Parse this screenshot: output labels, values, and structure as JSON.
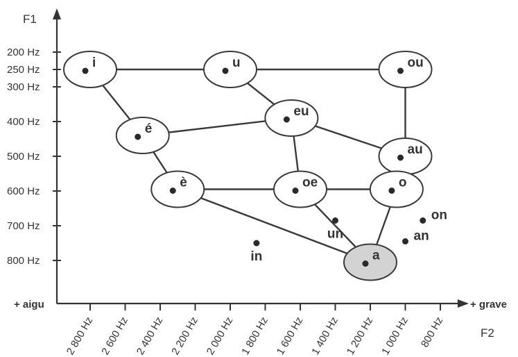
{
  "axes": {
    "y_title": "F1",
    "x_title": "F2",
    "left_end": "+ aigu",
    "right_end": "+ grave",
    "y_ticks": [
      {
        "label": "200 Hz",
        "value": 200
      },
      {
        "label": "250 Hz",
        "value": 250
      },
      {
        "label": "300 Hz",
        "value": 300
      },
      {
        "label": "400 Hz",
        "value": 400
      },
      {
        "label": "500 Hz",
        "value": 500
      },
      {
        "label": "600 Hz",
        "value": 600
      },
      {
        "label": "700 Hz",
        "value": 700
      },
      {
        "label": "800 Hz",
        "value": 800
      }
    ],
    "x_ticks": [
      {
        "label": "2 800 Hz",
        "value": 2800
      },
      {
        "label": "2 600 Hz",
        "value": 2600
      },
      {
        "label": "2 400 Hz",
        "value": 2400
      },
      {
        "label": "2 200 Hz",
        "value": 2200
      },
      {
        "label": "2 000 Hz",
        "value": 2000
      },
      {
        "label": "1 800 Hz",
        "value": 1800
      },
      {
        "label": "1 600 Hz",
        "value": 1600
      },
      {
        "label": "1 400 Hz",
        "value": 1400
      },
      {
        "label": "1 200 Hz",
        "value": 1200
      },
      {
        "label": "1 000 Hz",
        "value": 1000
      },
      {
        "label": "800 Hz",
        "value": 800
      }
    ]
  },
  "vowels": [
    {
      "id": "i",
      "label": "i",
      "f2": 2800,
      "f1": 250,
      "circled": true,
      "highlight": false
    },
    {
      "id": "u",
      "label": "u",
      "f2": 2000,
      "f1": 250,
      "circled": true,
      "highlight": false
    },
    {
      "id": "ou",
      "label": "ou",
      "f2": 1000,
      "f1": 250,
      "circled": true,
      "highlight": false
    },
    {
      "id": "e_acute",
      "label": "é",
      "f2": 2500,
      "f1": 440,
      "circled": true,
      "highlight": false
    },
    {
      "id": "eu",
      "label": "eu",
      "f2": 1650,
      "f1": 390,
      "circled": true,
      "highlight": false
    },
    {
      "id": "au",
      "label": "au",
      "f2": 1000,
      "f1": 500,
      "circled": true,
      "highlight": false
    },
    {
      "id": "e_grave",
      "label": "è",
      "f2": 2300,
      "f1": 595,
      "circled": true,
      "highlight": false
    },
    {
      "id": "oe",
      "label": "oe",
      "f2": 1600,
      "f1": 595,
      "circled": true,
      "highlight": false
    },
    {
      "id": "o",
      "label": "o",
      "f2": 1050,
      "f1": 595,
      "circled": true,
      "highlight": false
    },
    {
      "id": "a",
      "label": "a",
      "f2": 1200,
      "f1": 805,
      "circled": true,
      "highlight": true
    },
    {
      "id": "un",
      "label": "un",
      "f2": 1400,
      "f1": 685,
      "circled": false,
      "highlight": false
    },
    {
      "id": "in",
      "label": "in",
      "f2": 1850,
      "f1": 750,
      "circled": false,
      "highlight": false
    },
    {
      "id": "on",
      "label": "on",
      "f2": 900,
      "f1": 685,
      "circled": false,
      "highlight": false
    },
    {
      "id": "an",
      "label": "an",
      "f2": 1000,
      "f1": 745,
      "circled": false,
      "highlight": false
    }
  ],
  "edges": [
    [
      "i",
      "u"
    ],
    [
      "u",
      "ou"
    ],
    [
      "i",
      "e_acute"
    ],
    [
      "u",
      "eu"
    ],
    [
      "e_acute",
      "eu"
    ],
    [
      "eu",
      "au"
    ],
    [
      "ou",
      "au"
    ],
    [
      "eu",
      "oe"
    ],
    [
      "e_acute",
      "e_grave"
    ],
    [
      "e_grave",
      "oe"
    ],
    [
      "oe",
      "o"
    ],
    [
      "au",
      "o"
    ],
    [
      "e_grave",
      "a"
    ],
    [
      "oe",
      "a"
    ],
    [
      "o",
      "a"
    ]
  ],
  "colors": {
    "ink": "#333333",
    "bubble_fill": "#ffffff",
    "highlight_fill": "#d3d3d3"
  }
}
